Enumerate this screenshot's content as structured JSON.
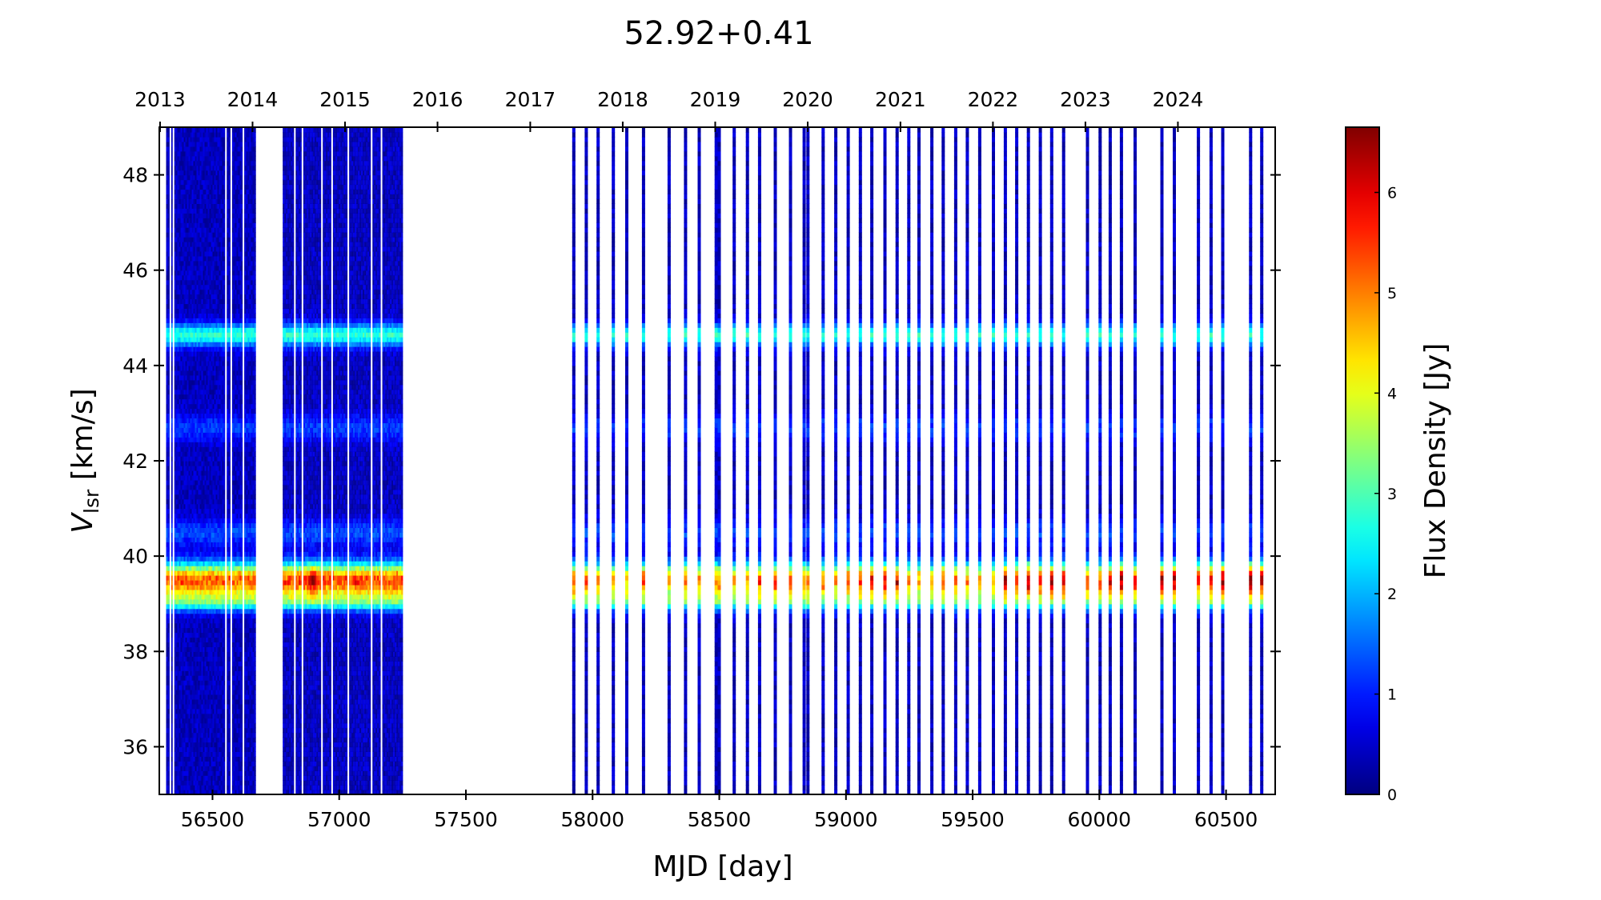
{
  "chart_data": {
    "type": "heatmap",
    "title": "52.92+0.41",
    "xlabel": "MJD [day]",
    "ylabel": {
      "symbol": "V",
      "subscript": "lsr",
      "unit": " [km/s]"
    },
    "colorbar_label": "Flux Density [Jy]",
    "colormap": "jet",
    "xlim": [
      56290,
      60694
    ],
    "ylim": [
      35,
      49
    ],
    "clim": [
      0,
      6.65
    ],
    "grid": false,
    "xticks": [
      56500,
      57000,
      57500,
      58000,
      58500,
      59000,
      59500,
      60000,
      60500
    ],
    "xtick_labels": [
      "56500",
      "57000",
      "57500",
      "58000",
      "58500",
      "59000",
      "59500",
      "60000",
      "60500"
    ],
    "yticks": [
      36,
      38,
      40,
      42,
      44,
      46,
      48
    ],
    "ytick_labels": [
      "36",
      "38",
      "40",
      "42",
      "44",
      "46",
      "48"
    ],
    "colorbar_ticks": [
      0,
      1,
      2,
      3,
      4,
      5,
      6
    ],
    "colorbar_tick_labels": [
      "0",
      "1",
      "2",
      "3",
      "4",
      "5",
      "6"
    ],
    "top_axis": {
      "tick_mjd": [
        56293,
        56658,
        57023,
        57388,
        57754,
        58119,
        58484,
        58849,
        59215,
        59580,
        59945,
        60310
      ],
      "tick_labels": [
        "2013",
        "2014",
        "2015",
        "2016",
        "2017",
        "2018",
        "2019",
        "2020",
        "2021",
        "2022",
        "2023",
        "2024"
      ]
    },
    "spectral_features": [
      {
        "velocity": 39.5,
        "flux": "per-epoch peak",
        "width": 0.25
      },
      {
        "velocity": 39.05,
        "flux": 2.0,
        "width": 0.15
      },
      {
        "velocity": 44.65,
        "flux": 2.4,
        "width": 0.17
      },
      {
        "velocity": 40.5,
        "flux": 0.9,
        "width": 0.2
      },
      {
        "velocity": 42.7,
        "flux": 0.8,
        "width": 0.2
      }
    ],
    "baseline_flux": 0.4,
    "dense_segments": [
      {
        "start": 56317,
        "end": 56668,
        "peak": 4.8,
        "gaps": [
          56334,
          56346,
          56553,
          56574,
          56622
        ]
      },
      {
        "start": 56777,
        "end": 57246,
        "peak": 5.0,
        "gaps": [
          56825,
          56855,
          56932,
          56972,
          57036,
          57128,
          57167
        ],
        "max_peak": {
          "mjd": 56893,
          "flux": 6.4
        }
      }
    ],
    "epochs": [
      [
        57926,
        5.0
      ],
      [
        57975,
        5.0
      ],
      [
        58022,
        4.5
      ],
      [
        58082,
        4.2
      ],
      [
        58135,
        4.3
      ],
      [
        58201,
        5.0
      ],
      [
        58302,
        4.3
      ],
      [
        58367,
        4.8
      ],
      [
        58421,
        4.4
      ],
      [
        58488,
        4.6
      ],
      [
        58500,
        4.6
      ],
      [
        58559,
        4.2
      ],
      [
        58611,
        4.4
      ],
      [
        58659,
        5.1
      ],
      [
        58721,
        5.1
      ],
      [
        58781,
        5.2
      ],
      [
        58835,
        4.6
      ],
      [
        58850,
        4.6
      ],
      [
        58910,
        4.9
      ],
      [
        58960,
        4.4
      ],
      [
        59009,
        5.0
      ],
      [
        59057,
        5.0
      ],
      [
        59102,
        5.6
      ],
      [
        59154,
        5.4
      ],
      [
        59202,
        5.6
      ],
      [
        59248,
        4.5
      ],
      [
        59288,
        4.4
      ],
      [
        59339,
        4.2
      ],
      [
        59384,
        4.9
      ],
      [
        59433,
        4.6
      ],
      [
        59479,
        4.4
      ],
      [
        59528,
        4.3
      ],
      [
        59582,
        4.4
      ],
      [
        59629,
        5.8
      ],
      [
        59674,
        5.3
      ],
      [
        59720,
        5.8
      ],
      [
        59767,
        5.5
      ],
      [
        59812,
        5.9
      ],
      [
        59859,
        5.8
      ],
      [
        59953,
        5.2
      ],
      [
        60003,
        5.1
      ],
      [
        60043,
        5.3
      ],
      [
        60087,
        6.3
      ],
      [
        60141,
        5.2
      ],
      [
        60247,
        6.1
      ],
      [
        60296,
        5.9
      ],
      [
        60391,
        5.2
      ],
      [
        60441,
        5.4
      ],
      [
        60487,
        6.2
      ],
      [
        60597,
        6.3
      ],
      [
        60641,
        5.9
      ]
    ]
  }
}
